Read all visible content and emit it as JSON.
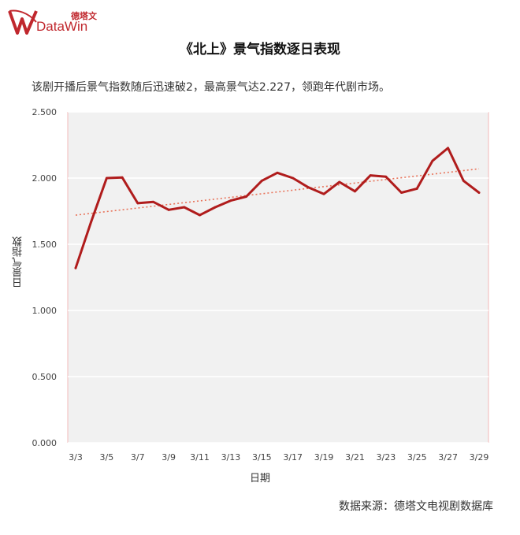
{
  "brand": {
    "name_cn": "德塔文",
    "name_en": "DataWin",
    "color": "#c0272d"
  },
  "header": {
    "title": "《北上》景气指数逐日表现",
    "subtitle": "该剧开播后景气指数随后迅速破2，最高景气达2.227，领跑年代剧市场。"
  },
  "footer": {
    "source": "数据来源：德塔文电视剧数据库"
  },
  "chart_data": {
    "type": "line",
    "ylabel": "日景气指数",
    "xlabel": "日期",
    "ylim": [
      0,
      2.5
    ],
    "y_ticks": [
      "0.000",
      "0.500",
      "1.000",
      "1.500",
      "2.000",
      "2.500"
    ],
    "x_tick_labels": [
      "3/3",
      "3/5",
      "3/7",
      "3/9",
      "3/11",
      "3/13",
      "3/15",
      "3/17",
      "3/19",
      "3/21",
      "3/23",
      "3/25",
      "3/27",
      "3/29"
    ],
    "x": [
      "3/3",
      "3/4",
      "3/5",
      "3/6",
      "3/7",
      "3/8",
      "3/9",
      "3/10",
      "3/11",
      "3/12",
      "3/13",
      "3/14",
      "3/15",
      "3/16",
      "3/17",
      "3/18",
      "3/19",
      "3/20",
      "3/21",
      "3/22",
      "3/23",
      "3/24",
      "3/25",
      "3/26",
      "3/27",
      "3/28",
      "3/29"
    ],
    "series": [
      {
        "name": "",
        "values": [
          1.32,
          1.67,
          2.0,
          2.005,
          1.81,
          1.82,
          1.76,
          1.78,
          1.72,
          1.78,
          1.83,
          1.86,
          1.98,
          2.04,
          2.0,
          1.93,
          1.88,
          1.97,
          1.9,
          2.02,
          2.01,
          1.89,
          1.92,
          2.13,
          2.227,
          1.98,
          1.89
        ],
        "color": "#b01c1c"
      }
    ],
    "trendline": {
      "style": "dotted",
      "color": "#e8735a",
      "start": 1.72,
      "end": 2.07
    },
    "grid": "horizontal",
    "plot_background": "#f1f1f1"
  }
}
